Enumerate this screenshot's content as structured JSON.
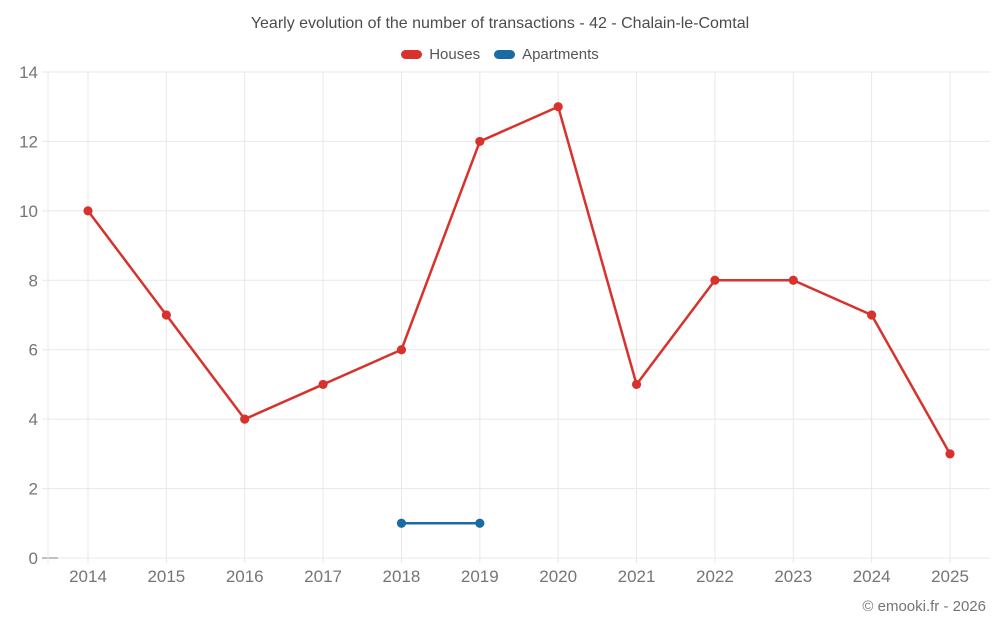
{
  "title": "Yearly evolution of the number of transactions - 42 - Chalain-le-Comtal",
  "footer": "© emooki.fr - 2026",
  "colors": {
    "houses": "#d8322d",
    "apartments": "#1b6ba3",
    "grid": "#e8e8e8",
    "zero_tick": "#aaaaaa",
    "axis_text": "#757575",
    "title_text": "#4c4c4c",
    "legend_text": "#555555"
  },
  "chart_data": {
    "type": "line",
    "title": "Yearly evolution of the number of transactions - 42 - Chalain-le-Comtal",
    "categories": [
      "2014",
      "2015",
      "2016",
      "2017",
      "2018",
      "2019",
      "2020",
      "2021",
      "2022",
      "2023",
      "2024",
      "2025"
    ],
    "series": [
      {
        "name": "Houses",
        "color": "#d8322d",
        "values": [
          10,
          7,
          4,
          5,
          6,
          12,
          13,
          5,
          8,
          8,
          7,
          3
        ]
      },
      {
        "name": "Apartments",
        "color": "#1b6ba3",
        "values": [
          null,
          null,
          null,
          null,
          1,
          1,
          null,
          null,
          null,
          null,
          null,
          null
        ]
      }
    ],
    "xlabel": "",
    "ylabel": "",
    "ylim": [
      0,
      14
    ],
    "ytick_step": 2,
    "yticks": [
      0,
      2,
      4,
      6,
      8,
      10,
      12,
      14
    ],
    "grid": true,
    "legend_position": "top",
    "marker": "circle"
  }
}
